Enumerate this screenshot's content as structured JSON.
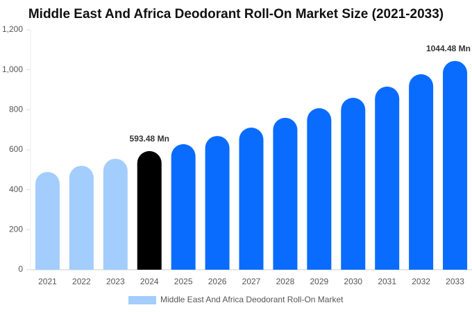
{
  "chart_data": {
    "type": "bar",
    "title": "Middle East And Africa Deodorant Roll-On Market Size (2021-2033)",
    "categories": [
      "2021",
      "2022",
      "2023",
      "2024",
      "2025",
      "2026",
      "2027",
      "2028",
      "2029",
      "2030",
      "2031",
      "2032",
      "2033"
    ],
    "series": [
      {
        "name": "Middle East And Africa Deodorant Roll-On Market",
        "color": "#a3cdfc",
        "values": [
          489,
          520,
          555,
          593.48,
          628,
          669,
          711,
          760,
          808,
          860,
          916,
          978,
          1044.48
        ],
        "colors": [
          "#a3cdfc",
          "#a3cdfc",
          "#a3cdfc",
          "#000000",
          "#0a6cff",
          "#0a6cff",
          "#0a6cff",
          "#0a6cff",
          "#0a6cff",
          "#0a6cff",
          "#0a6cff",
          "#0a6cff",
          "#0a6cff"
        ],
        "value_labels": [
          null,
          null,
          null,
          "593.48 Mn",
          null,
          null,
          null,
          null,
          null,
          null,
          null,
          null,
          "1044.48 Mn"
        ]
      }
    ],
    "ylim": [
      0,
      1200
    ],
    "yticks": [
      0,
      200,
      400,
      600,
      800,
      {
        "value": 1000,
        "label": "1,000"
      },
      {
        "value": 1200,
        "label": "1,200"
      }
    ]
  }
}
